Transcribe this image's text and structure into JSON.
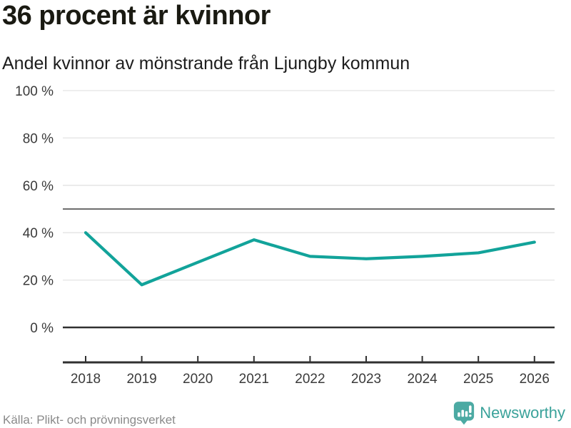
{
  "header": {
    "title": "36 procent är kvinnor",
    "subtitle": "Andel kvinnor av mönstrande från Ljungby kommun"
  },
  "chart_data": {
    "type": "line",
    "title": "36 procent är kvinnor",
    "subtitle": "Andel kvinnor av mönstrande från Ljungby kommun",
    "categories": [
      "2018",
      "2019",
      "2020",
      "2021",
      "2022",
      "2023",
      "2024",
      "2025",
      "2026"
    ],
    "series": [
      {
        "name": "Andel kvinnor av mönstrande",
        "color": "#12a39a",
        "values": [
          40,
          18,
          27.5,
          37,
          30,
          29,
          30,
          31.5,
          36
        ]
      }
    ],
    "xlabel": "",
    "ylabel": "",
    "ylim": [
      0,
      100
    ],
    "ytick_values": [
      0,
      20,
      40,
      60,
      80,
      100
    ],
    "ytick_labels": [
      "0 %",
      "20 %",
      "40 %",
      "60 %",
      "80 %",
      "100 %"
    ],
    "reference_line_y": 50,
    "grid": true,
    "legend": "none"
  },
  "footer": {
    "source": "Källa: Plikt- och prövningsverket",
    "brand": {
      "name": "Newsworthy",
      "icon": "newsworthy-speech-bubble-bar-chart-icon",
      "text_color": "#3aa29a",
      "icon_color": "#4caaa3"
    }
  },
  "colors": {
    "line": "#12a39a",
    "gridline": "#e3e3e3",
    "axis": "#303030",
    "reference_line": "#6e6e6e",
    "tick_text": "#3a3a3a"
  }
}
